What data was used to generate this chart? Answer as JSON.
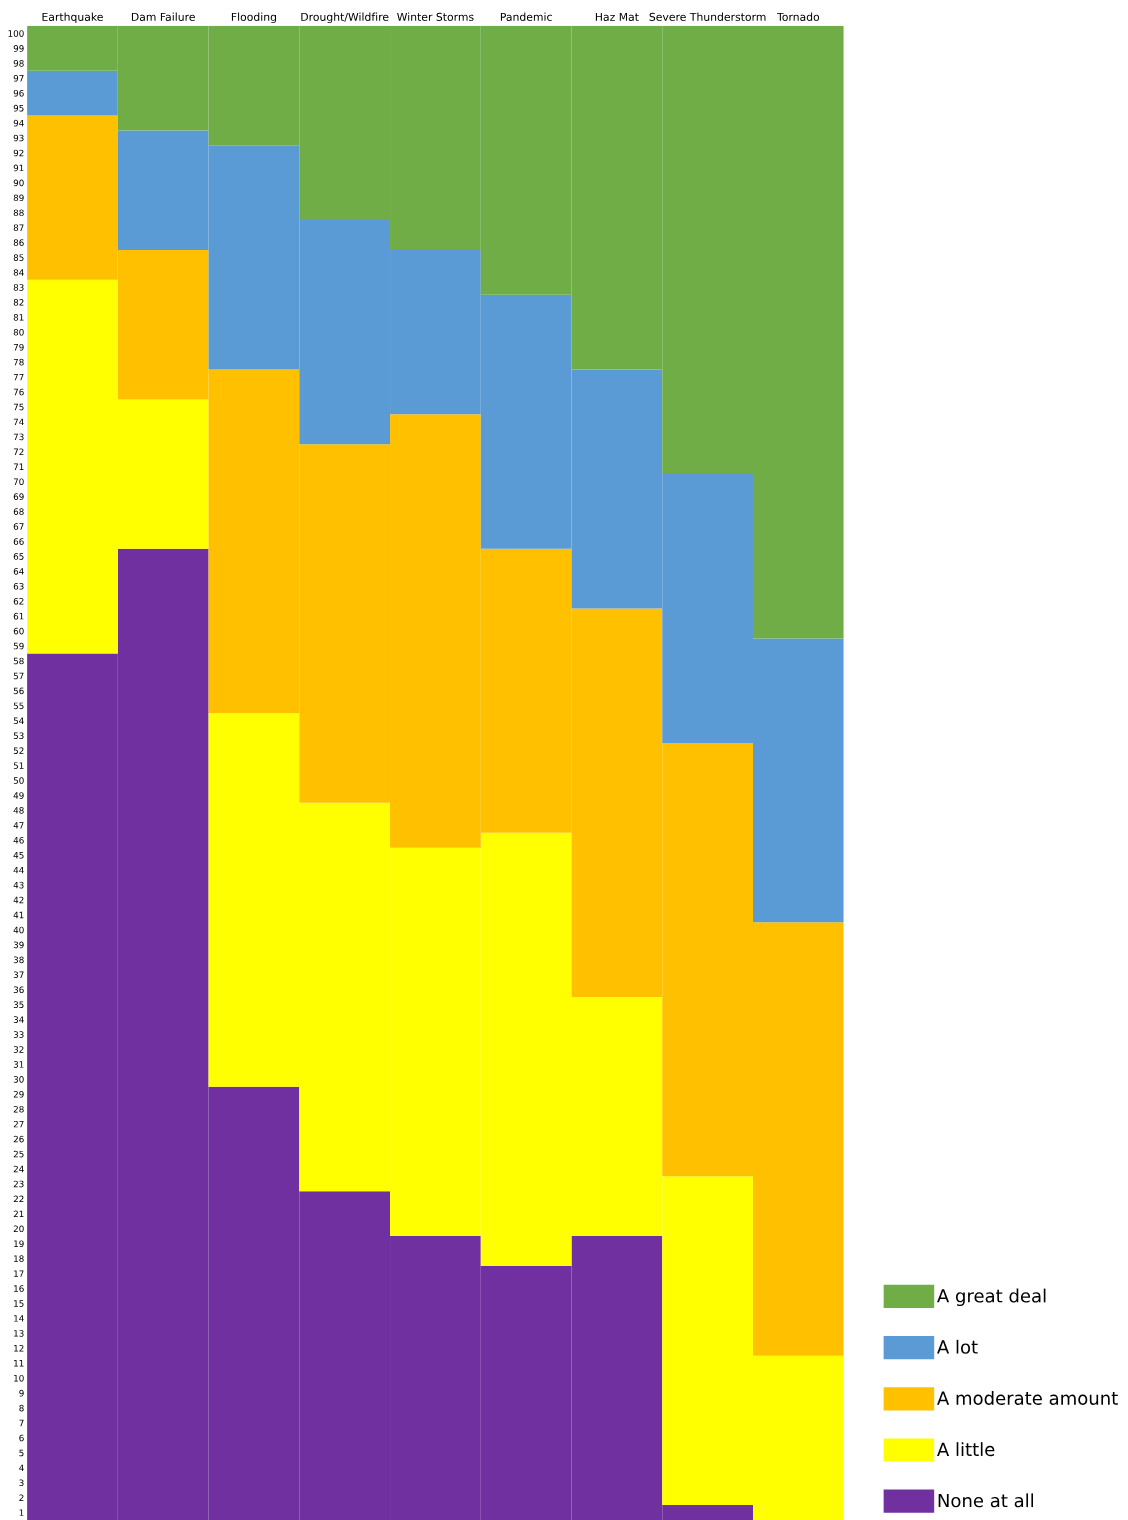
{
  "chart_data": {
    "type": "bar",
    "stacked": true,
    "categories": [
      "Earthquake",
      "Dam Failure",
      "Flooding",
      "Drought/Wildfire",
      "Winter Storms",
      "Pandemic",
      "Haz Mat",
      "Severe Thunderstorm",
      "Tornado"
    ],
    "series": [
      {
        "name": "None at all",
        "color": "#7030a0",
        "values": [
          58,
          65,
          29,
          22,
          19,
          17,
          19,
          1,
          0
        ]
      },
      {
        "name": "A little",
        "color": "#ffff00",
        "values": [
          25,
          10,
          25,
          26,
          26,
          29,
          16,
          22,
          11
        ]
      },
      {
        "name": "A moderate amount",
        "color": "#ffc000",
        "values": [
          11,
          10,
          23,
          24,
          29,
          19,
          26,
          29,
          29
        ]
      },
      {
        "name": "A lot",
        "color": "#5b9bd5",
        "values": [
          3,
          8,
          15,
          15,
          11,
          17,
          16,
          18,
          19
        ]
      },
      {
        "name": "A great deal",
        "color": "#70ad47",
        "values": [
          3,
          7,
          8,
          13,
          15,
          18,
          23,
          30,
          41
        ]
      }
    ],
    "ylim": [
      0,
      100
    ],
    "yticks": [
      {
        "value": 0.5,
        "label": "1"
      },
      {
        "value": 1.5,
        "label": "2"
      },
      {
        "value": 2.5,
        "label": "3"
      },
      {
        "value": 3.5,
        "label": "4"
      },
      {
        "value": 4.5,
        "label": "5"
      },
      {
        "value": 5.5,
        "label": "6"
      },
      {
        "value": 6.5,
        "label": "7"
      },
      {
        "value": 7.5,
        "label": "8"
      },
      {
        "value": 8.5,
        "label": "9"
      },
      {
        "value": 9.5,
        "label": "10"
      },
      {
        "value": 10.5,
        "label": "11"
      },
      {
        "value": 11.5,
        "label": "12"
      },
      {
        "value": 12.5,
        "label": "13"
      },
      {
        "value": 13.5,
        "label": "14"
      },
      {
        "value": 14.5,
        "label": "15"
      },
      {
        "value": 15.5,
        "label": "16"
      },
      {
        "value": 16.5,
        "label": "17"
      },
      {
        "value": 17.5,
        "label": "18"
      },
      {
        "value": 18.5,
        "label": "19"
      },
      {
        "value": 19.5,
        "label": "20"
      },
      {
        "value": 20.5,
        "label": "21"
      },
      {
        "value": 21.5,
        "label": "22"
      },
      {
        "value": 22.5,
        "label": "23"
      },
      {
        "value": 23.5,
        "label": "24"
      },
      {
        "value": 24.5,
        "label": "25"
      },
      {
        "value": 25.5,
        "label": "26"
      },
      {
        "value": 26.5,
        "label": "27"
      },
      {
        "value": 27.5,
        "label": "28"
      },
      {
        "value": 28.5,
        "label": "29"
      },
      {
        "value": 29.5,
        "label": "30"
      },
      {
        "value": 30.5,
        "label": "31"
      },
      {
        "value": 31.5,
        "label": "32"
      },
      {
        "value": 32.5,
        "label": "33"
      },
      {
        "value": 33.5,
        "label": "34"
      },
      {
        "value": 34.5,
        "label": "35"
      },
      {
        "value": 35.5,
        "label": "36"
      },
      {
        "value": 36.5,
        "label": "37"
      },
      {
        "value": 37.5,
        "label": "38"
      },
      {
        "value": 38.5,
        "label": "39"
      },
      {
        "value": 39.5,
        "label": "40"
      },
      {
        "value": 40.5,
        "label": "41"
      },
      {
        "value": 41.5,
        "label": "42"
      },
      {
        "value": 42.5,
        "label": "43"
      },
      {
        "value": 43.5,
        "label": "44"
      },
      {
        "value": 44.5,
        "label": "45"
      },
      {
        "value": 45.5,
        "label": "46"
      },
      {
        "value": 46.5,
        "label": "47"
      },
      {
        "value": 47.5,
        "label": "48"
      },
      {
        "value": 48.5,
        "label": "49"
      },
      {
        "value": 49.5,
        "label": "50"
      },
      {
        "value": 50.5,
        "label": "51"
      },
      {
        "value": 51.5,
        "label": "52"
      },
      {
        "value": 52.5,
        "label": "53"
      },
      {
        "value": 53.5,
        "label": "54"
      },
      {
        "value": 54.5,
        "label": "55"
      },
      {
        "value": 55.5,
        "label": "56"
      },
      {
        "value": 56.5,
        "label": "57"
      },
      {
        "value": 57.5,
        "label": "58"
      },
      {
        "value": 58.5,
        "label": "59"
      },
      {
        "value": 59.5,
        "label": "60"
      },
      {
        "value": 60.5,
        "label": "61"
      },
      {
        "value": 61.5,
        "label": "62"
      },
      {
        "value": 62.5,
        "label": "63"
      },
      {
        "value": 63.5,
        "label": "64"
      },
      {
        "value": 64.5,
        "label": "65"
      },
      {
        "value": 65.5,
        "label": "66"
      },
      {
        "value": 66.5,
        "label": "67"
      },
      {
        "value": 67.5,
        "label": "68"
      },
      {
        "value": 68.5,
        "label": "69"
      },
      {
        "value": 69.5,
        "label": "70"
      },
      {
        "value": 70.5,
        "label": "71"
      },
      {
        "value": 71.5,
        "label": "72"
      },
      {
        "value": 72.5,
        "label": "73"
      },
      {
        "value": 73.5,
        "label": "74"
      },
      {
        "value": 74.5,
        "label": "75"
      },
      {
        "value": 75.5,
        "label": "76"
      },
      {
        "value": 76.5,
        "label": "77"
      },
      {
        "value": 77.5,
        "label": "78"
      },
      {
        "value": 78.5,
        "label": "79"
      },
      {
        "value": 79.5,
        "label": "80"
      },
      {
        "value": 80.5,
        "label": "81"
      },
      {
        "value": 81.5,
        "label": "82"
      },
      {
        "value": 82.5,
        "label": "83"
      },
      {
        "value": 83.5,
        "label": "84"
      },
      {
        "value": 84.5,
        "label": "85"
      },
      {
        "value": 85.5,
        "label": "86"
      },
      {
        "value": 86.5,
        "label": "87"
      },
      {
        "value": 87.5,
        "label": "88"
      },
      {
        "value": 88.5,
        "label": "89"
      },
      {
        "value": 89.5,
        "label": "90"
      },
      {
        "value": 90.5,
        "label": "91"
      },
      {
        "value": 91.5,
        "label": "92"
      },
      {
        "value": 92.5,
        "label": "93"
      },
      {
        "value": 93.5,
        "label": "94"
      },
      {
        "value": 94.5,
        "label": "95"
      },
      {
        "value": 95.5,
        "label": "96"
      },
      {
        "value": 96.5,
        "label": "97"
      },
      {
        "value": 97.5,
        "label": "98"
      },
      {
        "value": 98.5,
        "label": "99"
      },
      {
        "value": 99.5,
        "label": "100"
      }
    ],
    "grid": false,
    "legend": "bottom right"
  }
}
